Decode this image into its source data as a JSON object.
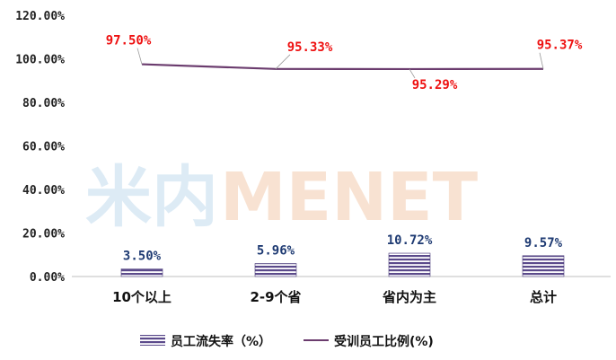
{
  "chart_data": {
    "type": "bar",
    "categories": [
      "10个以上",
      "2-9个省",
      "省内为主",
      "总计"
    ],
    "y_ticks": [
      "0.00%",
      "20.00%",
      "40.00%",
      "60.00%",
      "80.00%",
      "100.00%",
      "120.00%"
    ],
    "ylim": [
      0,
      120
    ],
    "grid": false,
    "legend_position": "bottom",
    "series": [
      {
        "name": "员工流失率（%）",
        "type": "bar",
        "values": [
          3.5,
          5.96,
          10.72,
          9.57
        ],
        "labels": [
          "3.50%",
          "5.96%",
          "10.72%",
          "9.57%"
        ],
        "color": "#5b4a8b"
      },
      {
        "name": "受训员工比例(%)",
        "type": "line",
        "values": [
          97.5,
          95.33,
          95.29,
          95.37
        ],
        "labels": [
          "97.50%",
          "95.33%",
          "95.29%",
          "95.37%"
        ],
        "color": "#6b3c6e"
      }
    ]
  },
  "watermark": {
    "part1": "米内",
    "part2": "MENET"
  },
  "colors": {
    "line_label": "#ee1111",
    "bar_label": "#1f3b73",
    "axis": "#bfbfbf"
  }
}
